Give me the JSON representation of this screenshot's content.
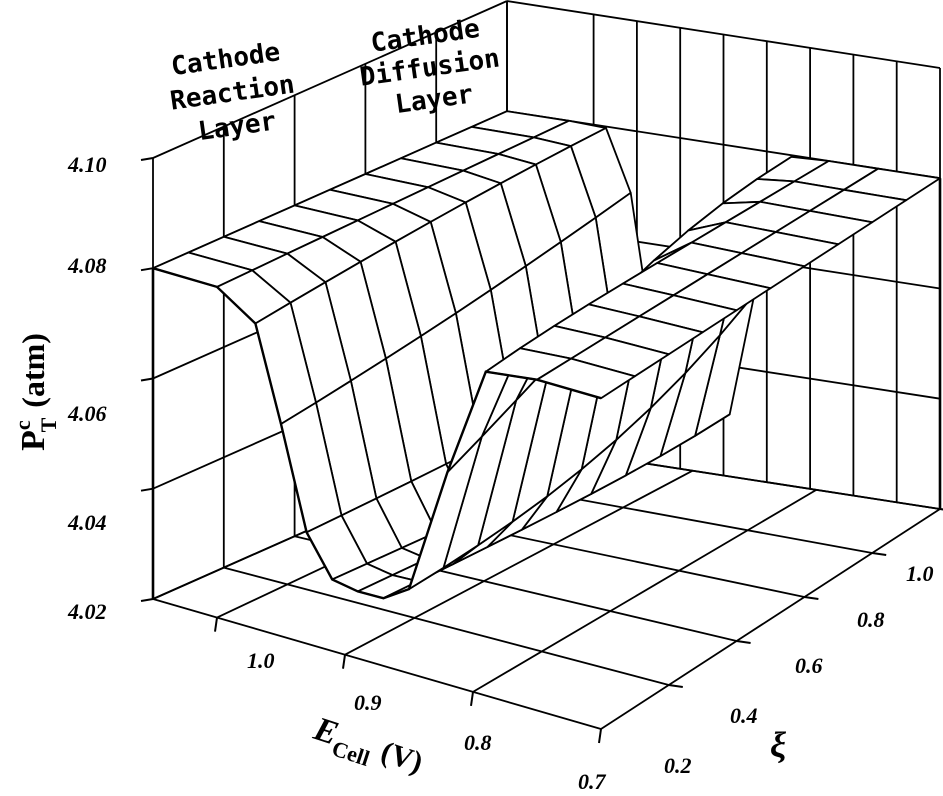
{
  "chart_data": {
    "type": "surface",
    "title": "",
    "zlabel": {
      "main": "P",
      "sup": "c",
      "sub": "T",
      "unit": "(atm)"
    },
    "xlabel": {
      "main": "E",
      "sub": "Cell",
      "unit": "(V)"
    },
    "ylabel": "ξ",
    "zlim": [
      4.02,
      4.1
    ],
    "z_ticks": [
      "4.02",
      "4.04",
      "4.06",
      "4.08",
      "4.10"
    ],
    "xlim": [
      1.05,
      0.7
    ],
    "x_ticks": [
      "1.0",
      "0.9",
      "0.8",
      "0.7"
    ],
    "ylim": [
      0.0,
      1.0
    ],
    "y_ticks": [
      "0.2",
      "0.4",
      "0.6",
      "0.8",
      "1.0"
    ],
    "region_labels": [
      [
        "Cathode",
        "Reaction",
        "Layer"
      ],
      [
        "Cathode",
        "Diffusion",
        "Layer"
      ]
    ],
    "E_cell": [
      1.05,
      1.0,
      0.97,
      0.95,
      0.93,
      0.91,
      0.89,
      0.87,
      0.85,
      0.82,
      0.79,
      0.75,
      0.7
    ],
    "xi": [
      0.0,
      0.1,
      0.2,
      0.3,
      0.4,
      0.5,
      0.6,
      0.7,
      0.8,
      0.9,
      1.0
    ],
    "P_plateau": 4.08,
    "P_min": 4.028,
    "dip_center_E": 0.89,
    "dip_width_E": 0.055,
    "grid": true
  }
}
